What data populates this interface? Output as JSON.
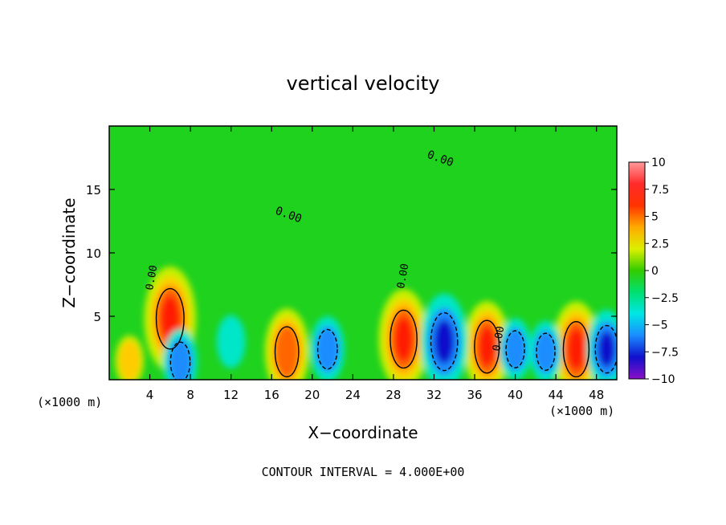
{
  "chart_data": {
    "type": "heatmap",
    "title": "vertical velocity",
    "xlabel": "X−coordinate",
    "ylabel": "Z−coordinate",
    "x_unit_left": "(×1000 m)",
    "x_unit_right": "(×1000 m)",
    "xlim": [
      0,
      50
    ],
    "ylim": [
      0,
      20
    ],
    "x_ticks": [
      4,
      8,
      12,
      16,
      20,
      24,
      28,
      32,
      36,
      40,
      44,
      48
    ],
    "y_ticks": [
      5,
      10,
      15
    ],
    "x_tick_labels": [
      "4",
      "8",
      "12",
      "16",
      "20",
      "24",
      "28",
      "32",
      "36",
      "40",
      "44",
      "48"
    ],
    "y_tick_labels": [
      "5",
      "10",
      "15"
    ],
    "colorbar": {
      "ticks": [
        10,
        7.5,
        5,
        2.5,
        0,
        -2.5,
        -5,
        -7.5,
        -10
      ],
      "labels": [
        "10",
        "7.5",
        "5",
        "2.5",
        "0",
        "−2.5",
        "−5",
        "−7.5",
        "−10"
      ],
      "range": [
        -10,
        10
      ]
    },
    "contour_labels": [
      "0.00",
      "0.00",
      "0.00",
      "0.00",
      "0.00"
    ],
    "footer": "CONTOUR INTERVAL = 4.000E+00",
    "cells": [
      {
        "x": 6,
        "z": 4.8,
        "w": 8.5
      },
      {
        "x": 17.5,
        "z": 2.2,
        "w": 6.5
      },
      {
        "x": 29.0,
        "z": 3.2,
        "w": 8.0
      },
      {
        "x": 37.2,
        "z": 2.6,
        "w": 7.0
      },
      {
        "x": 46.0,
        "z": 2.4,
        "w": 7.5
      },
      {
        "x": 2.0,
        "z": 1.5,
        "w": 2.5
      },
      {
        "x": 33.0,
        "z": 3.0,
        "w": -8.0
      },
      {
        "x": 49.0,
        "z": 2.4,
        "w": -6.0
      },
      {
        "x": 21.5,
        "z": 2.4,
        "w": -4.5
      },
      {
        "x": 40.0,
        "z": 2.4,
        "w": -4.0
      },
      {
        "x": 43.0,
        "z": 2.2,
        "w": -4.0
      },
      {
        "x": 7.0,
        "z": 1.4,
        "w": -4.5
      },
      {
        "x": 12.0,
        "z": 3.0,
        "w": -3.0
      }
    ]
  },
  "colors": {
    "background": "#ffffff",
    "field": "#1ed21e",
    "axis": "#000000"
  }
}
